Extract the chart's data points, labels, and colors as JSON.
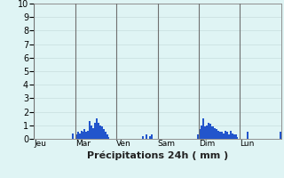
{
  "title": "Précipitations 24h ( mm )",
  "ylim": [
    0,
    10
  ],
  "yticks": [
    0,
    1,
    2,
    3,
    4,
    5,
    6,
    7,
    8,
    9,
    10
  ],
  "background_color": "#dff4f4",
  "bar_color": "#2255cc",
  "grid_color_minor": "#c8dede",
  "grid_color_major": "#c8dede",
  "day_line_color": "#707070",
  "day_labels": [
    "Jeu",
    "Mar",
    "Ven",
    "Sam",
    "Dim",
    "Lun"
  ],
  "day_positions": [
    0,
    24,
    48,
    72,
    96,
    120
  ],
  "n_bars": 144,
  "values": [
    0.0,
    0.0,
    0.0,
    0.0,
    0.0,
    0.0,
    0.0,
    0.0,
    0.0,
    0.0,
    0.0,
    0.0,
    0.0,
    0.0,
    0.0,
    0.0,
    0.0,
    0.0,
    0.0,
    0.0,
    0.0,
    0.0,
    0.4,
    0.0,
    0.3,
    0.5,
    0.4,
    0.6,
    0.5,
    0.7,
    0.5,
    0.6,
    1.3,
    1.0,
    0.8,
    1.2,
    1.5,
    1.2,
    1.0,
    0.9,
    0.7,
    0.5,
    0.3,
    0.1,
    0.0,
    0.0,
    0.0,
    0.0,
    0.0,
    0.0,
    0.0,
    0.0,
    0.0,
    0.0,
    0.0,
    0.0,
    0.0,
    0.0,
    0.0,
    0.0,
    0.0,
    0.0,
    0.0,
    0.2,
    0.0,
    0.3,
    0.0,
    0.2,
    0.3,
    0.0,
    0.0,
    0.0,
    0.0,
    0.0,
    0.0,
    0.0,
    0.0,
    0.0,
    0.0,
    0.0,
    0.0,
    0.0,
    0.0,
    0.0,
    0.0,
    0.0,
    0.0,
    0.0,
    0.0,
    0.0,
    0.0,
    0.0,
    0.0,
    0.0,
    0.0,
    0.3,
    0.7,
    1.0,
    1.5,
    0.9,
    1.0,
    1.2,
    1.1,
    0.9,
    0.9,
    0.8,
    0.7,
    0.6,
    0.5,
    0.5,
    0.4,
    0.6,
    0.5,
    0.3,
    0.6,
    0.4,
    0.3,
    0.3,
    0.1,
    0.0,
    0.0,
    0.0,
    0.0,
    0.0,
    0.5,
    0.0,
    0.0,
    0.0,
    0.0,
    0.0,
    0.0,
    0.0,
    0.0,
    0.0,
    0.0,
    0.0,
    0.0,
    0.0,
    0.0,
    0.0,
    0.0,
    0.0,
    0.0,
    0.5
  ]
}
